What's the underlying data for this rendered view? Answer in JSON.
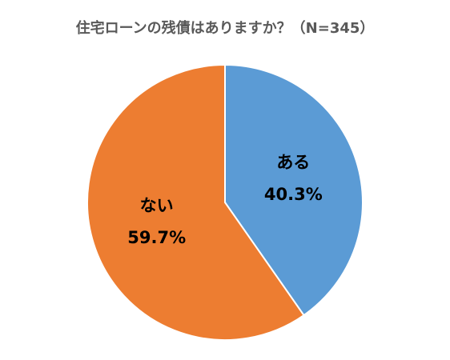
{
  "chart_data": {
    "type": "pie",
    "title": "住宅ローンの残債はありますか？（N=345）",
    "categories": [
      "ある",
      "ない"
    ],
    "values": [
      40.3,
      59.7
    ],
    "value_labels": [
      "40.3%",
      "59.7%"
    ],
    "colors": [
      "#5b9bd5",
      "#ed7d31"
    ]
  }
}
